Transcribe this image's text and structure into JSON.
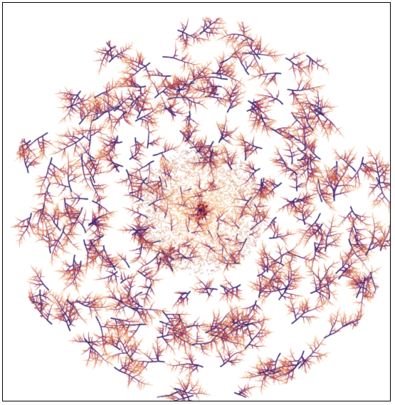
{
  "figure": {
    "subject": "radial-dendritic-fractal",
    "colors": {
      "background": "#ffffff",
      "border": "#000000",
      "branch_dark": "#2b1f6e",
      "branch_mid": "#7a2a6a",
      "branch_warm": "#d2553b",
      "tip": "#f3b26b",
      "core": "#8a1a2a"
    }
  }
}
